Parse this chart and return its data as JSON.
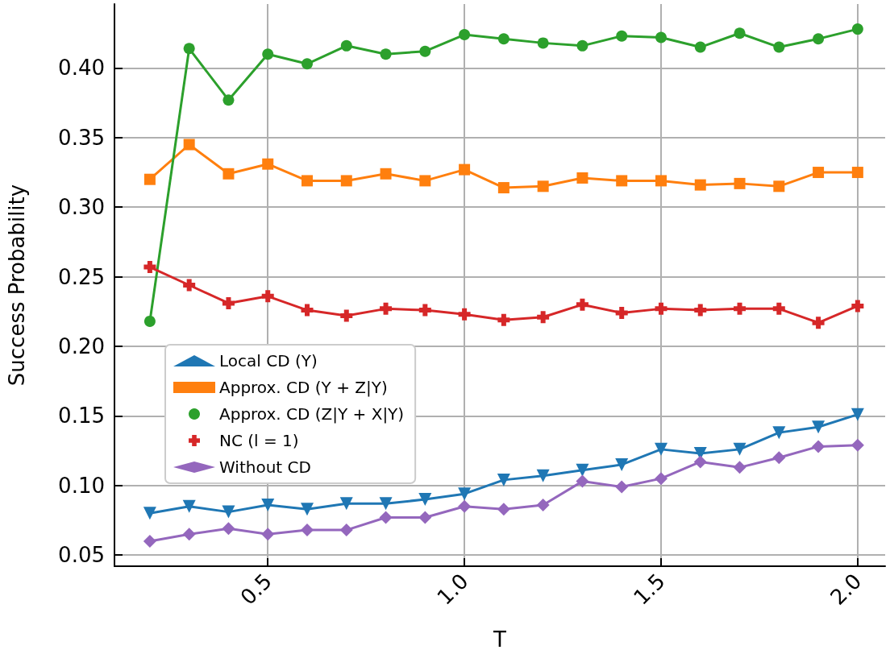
{
  "chart_data": {
    "type": "line",
    "xlabel": "T",
    "ylabel": "Success Probability",
    "x": [
      0.2,
      0.3,
      0.4,
      0.5,
      0.6,
      0.7,
      0.8,
      0.9,
      1.0,
      1.1,
      1.2,
      1.3,
      1.4,
      1.5,
      1.6,
      1.7,
      1.8,
      1.9,
      2.0
    ],
    "series": [
      {
        "name": "Local CD (Y)",
        "color": "#1f77b4",
        "marker": "triangle",
        "values": [
          0.08,
          0.085,
          0.081,
          0.086,
          0.083,
          0.087,
          0.087,
          0.09,
          0.094,
          0.104,
          0.107,
          0.111,
          0.115,
          0.126,
          0.123,
          0.126,
          0.138,
          0.142,
          0.151
        ]
      },
      {
        "name": "Approx. CD (Y + Z|Y)",
        "color": "#ff7f0e",
        "marker": "square",
        "values": [
          0.32,
          0.345,
          0.324,
          0.331,
          0.319,
          0.319,
          0.324,
          0.319,
          0.327,
          0.314,
          0.315,
          0.321,
          0.319,
          0.319,
          0.316,
          0.317,
          0.315,
          0.325,
          0.325
        ]
      },
      {
        "name": "Approx. CD (Z|Y + X|Y)",
        "color": "#2ca02c",
        "marker": "circle",
        "values": [
          0.218,
          0.414,
          0.377,
          0.41,
          0.403,
          0.416,
          0.41,
          0.412,
          0.424,
          0.421,
          0.418,
          0.416,
          0.423,
          0.422,
          0.415,
          0.425,
          0.415,
          0.421,
          0.428
        ]
      },
      {
        "name": "NC (l = 1)",
        "color": "#d62728",
        "marker": "cross",
        "values": [
          0.257,
          0.244,
          0.231,
          0.236,
          0.226,
          0.222,
          0.227,
          0.226,
          0.223,
          0.219,
          0.221,
          0.23,
          0.224,
          0.227,
          0.226,
          0.227,
          0.227,
          0.217,
          0.229
        ]
      },
      {
        "name": "Without CD",
        "color": "#9467bd",
        "marker": "diamond",
        "values": [
          0.06,
          0.065,
          0.069,
          0.065,
          0.068,
          0.068,
          0.077,
          0.077,
          0.085,
          0.083,
          0.086,
          0.103,
          0.099,
          0.105,
          0.117,
          0.113,
          0.12,
          0.128,
          0.129
        ]
      }
    ],
    "xlim": [
      0.11,
      2.07
    ],
    "xticks": [
      0.5,
      {
        "value": 1.0,
        "label": "1.0"
      },
      1.5,
      {
        "value": 2.0,
        "label": "2.0"
      }
    ],
    "ylim": [
      0.042,
      0.446
    ],
    "yticks": [
      0.05,
      {
        "value": 0.1,
        "label": "0.10"
      },
      0.15,
      {
        "value": 0.2,
        "label": "0.20"
      },
      0.25,
      {
        "value": 0.3,
        "label": "0.30"
      },
      0.35,
      {
        "value": 0.4,
        "label": "0.40"
      }
    ],
    "grid": true,
    "legend": "center left"
  }
}
